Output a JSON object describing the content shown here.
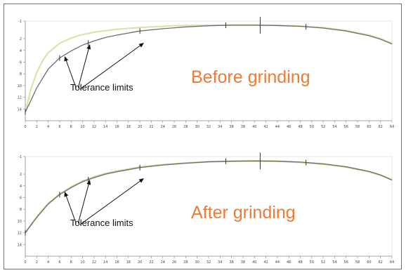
{
  "chart_data": [
    {
      "type": "line",
      "title": "Before grinding",
      "annotation": "Tolerance limits",
      "x_ticks": [
        "0",
        "2",
        "4",
        "6",
        "8",
        "10",
        "12",
        "14",
        "16",
        "18",
        "20",
        "22",
        "24",
        "26",
        "28",
        "30",
        "32",
        "34",
        "36",
        "38",
        "40",
        "42",
        "44",
        "46",
        "48",
        "50",
        "52",
        "54",
        "56",
        "58",
        "60",
        "62",
        "64"
      ],
      "y_ticks": [
        "-1",
        "2",
        "4",
        "6",
        "8",
        "10",
        "12",
        "14"
      ],
      "xlim": [
        0,
        64
      ],
      "ylim": [
        -1,
        16
      ],
      "grid": false,
      "colors": {
        "measured": "#d9e4a8",
        "tolerance": "#6d6d75"
      },
      "series": [
        {
          "x": [
            0,
            1,
            2,
            3,
            4,
            6,
            8,
            10,
            12,
            16,
            20,
            26,
            32,
            38,
            40,
            44,
            48,
            52,
            56,
            60,
            62,
            64
          ],
          "y": [
            14.5,
            10.5,
            7.8,
            5.8,
            4.4,
            2.8,
            1.9,
            1.3,
            0.9,
            0.4,
            0.1,
            -0.2,
            -0.3,
            -0.3,
            -0.3,
            -0.25,
            -0.15,
            0.1,
            0.6,
            1.4,
            2.0,
            2.8
          ],
          "role": "measured"
        },
        {
          "x": [
            0,
            1,
            2,
            4,
            6,
            8,
            10,
            12,
            14,
            16,
            20,
            24,
            28,
            32,
            36,
            40,
            44,
            48,
            52,
            56,
            60,
            62,
            64
          ],
          "y": [
            14.5,
            12.5,
            10.4,
            7.2,
            5.3,
            4.1,
            3.1,
            2.4,
            1.8,
            1.4,
            0.7,
            0.3,
            0.0,
            -0.2,
            -0.3,
            -0.3,
            -0.25,
            -0.1,
            0.2,
            0.7,
            1.5,
            2.1,
            2.9
          ],
          "role": "tolerance"
        }
      ],
      "tolerance_markers": [
        0,
        6,
        11,
        20,
        35,
        41,
        49
      ]
    },
    {
      "type": "line",
      "title": "After grinding",
      "annotation": "Tolerance limits",
      "x_ticks": [
        "0",
        "2",
        "4",
        "6",
        "8",
        "10",
        "12",
        "14",
        "16",
        "18",
        "20",
        "22",
        "24",
        "26",
        "28",
        "30",
        "32",
        "34",
        "36",
        "38",
        "40",
        "42",
        "44",
        "46",
        "48",
        "50",
        "52",
        "54",
        "56",
        "58",
        "60",
        "62",
        "64"
      ],
      "y_ticks": [
        "-1",
        "2",
        "4",
        "6",
        "8",
        "10",
        "12",
        "14"
      ],
      "xlim": [
        0,
        64
      ],
      "ylim": [
        -1,
        16
      ],
      "grid": false,
      "colors": {
        "measured": "#c4d98d",
        "tolerance": "#6d6d75"
      },
      "series": [
        {
          "x": [
            0,
            1,
            2,
            4,
            6,
            8,
            10,
            12,
            14,
            16,
            20,
            24,
            28,
            32,
            36,
            40,
            44,
            48,
            52,
            56,
            60,
            62,
            64
          ],
          "y": [
            12.0,
            10.6,
            9.3,
            7.0,
            5.4,
            4.2,
            3.2,
            2.5,
            1.9,
            1.5,
            0.8,
            0.4,
            0.1,
            -0.1,
            -0.2,
            -0.25,
            -0.2,
            0.0,
            0.3,
            0.8,
            1.6,
            2.2,
            3.0
          ],
          "role": "measured"
        },
        {
          "x": [
            0,
            1,
            2,
            4,
            6,
            8,
            10,
            12,
            14,
            16,
            20,
            24,
            28,
            32,
            36,
            40,
            44,
            48,
            52,
            56,
            60,
            62,
            64
          ],
          "y": [
            12.0,
            10.7,
            9.4,
            7.1,
            5.5,
            4.3,
            3.3,
            2.6,
            2.0,
            1.6,
            0.9,
            0.45,
            0.15,
            -0.1,
            -0.2,
            -0.25,
            -0.2,
            -0.05,
            0.25,
            0.75,
            1.55,
            2.15,
            3.0
          ],
          "role": "tolerance"
        }
      ],
      "tolerance_markers": [
        0,
        6,
        11,
        20,
        35,
        41,
        49
      ]
    }
  ]
}
